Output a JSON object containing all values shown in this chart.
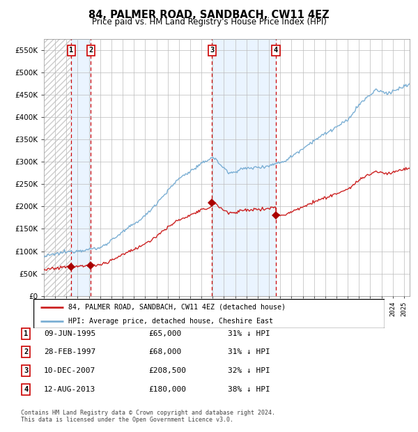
{
  "title": "84, PALMER ROAD, SANDBACH, CW11 4EZ",
  "subtitle": "Price paid vs. HM Land Registry's House Price Index (HPI)",
  "legend_line1": "84, PALMER ROAD, SANDBACH, CW11 4EZ (detached house)",
  "legend_line2": "HPI: Average price, detached house, Cheshire East",
  "footer1": "Contains HM Land Registry data © Crown copyright and database right 2024.",
  "footer2": "This data is licensed under the Open Government Licence v3.0.",
  "sale_dates_num": [
    1995.4411,
    1997.1644,
    2007.9397,
    2013.6219
  ],
  "sale_prices": [
    65000,
    68000,
    208500,
    180000
  ],
  "sale_labels": [
    "1",
    "2",
    "3",
    "4"
  ],
  "hpi_color": "#7bafd4",
  "price_color": "#cc2222",
  "marker_color": "#aa0000",
  "background_color": "#ffffff",
  "grid_color": "#bbbbbb",
  "shade_color": "#ddeeff",
  "ylim": [
    0,
    575000
  ],
  "yticks": [
    0,
    50000,
    100000,
    150000,
    200000,
    250000,
    300000,
    350000,
    400000,
    450000,
    500000,
    550000
  ],
  "xlim_start": 1993.0,
  "xlim_end": 2025.5,
  "table_info": [
    [
      "1",
      "09-JUN-1995",
      "£65,000",
      "31% ↓ HPI"
    ],
    [
      "2",
      "28-FEB-1997",
      "£68,000",
      "31% ↓ HPI"
    ],
    [
      "3",
      "10-DEC-2007",
      "£208,500",
      "32% ↓ HPI"
    ],
    [
      "4",
      "12-AUG-2013",
      "£180,000",
      "38% ↓ HPI"
    ]
  ]
}
